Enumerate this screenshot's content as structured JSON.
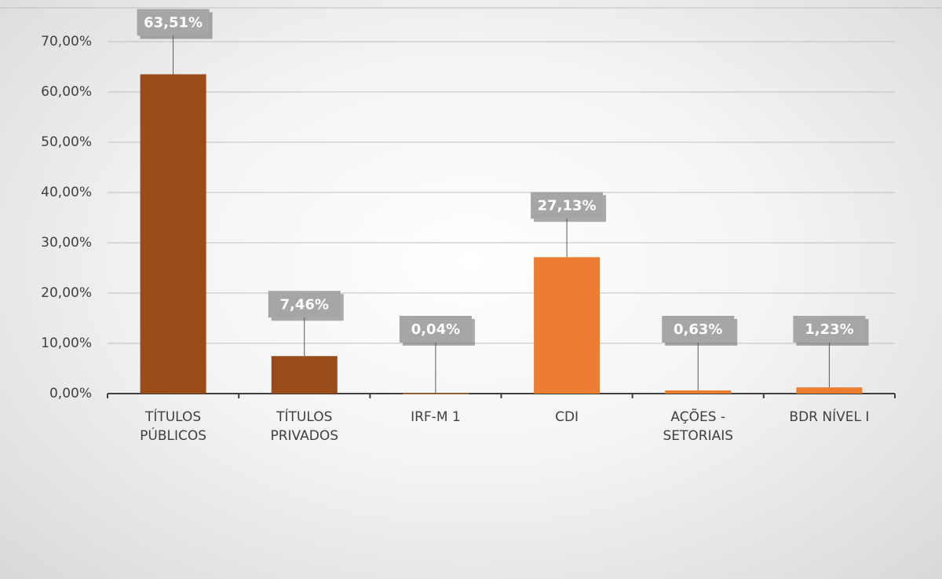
{
  "chart_data": {
    "type": "bar",
    "categories": [
      "TÍTULOS PÚBLICOS",
      "TÍTULOS PRIVADOS",
      "IRF-M 1",
      "CDI",
      "AÇÕES - SETORIAIS",
      "BDR NÍVEL I"
    ],
    "values": [
      63.51,
      7.46,
      0.04,
      27.13,
      0.63,
      1.23
    ],
    "value_labels": [
      "63,51%",
      "7,46%",
      "0,04%",
      "27,13%",
      "0,63%",
      "1,23%"
    ],
    "colors": [
      "#9a4b1a",
      "#9a4b1a",
      "#ed7d31",
      "#ed7d31",
      "#ed7d31",
      "#ed7d31"
    ],
    "ylim": [
      0,
      70
    ],
    "yticks": [
      {
        "value": 0,
        "label": "0,00%"
      },
      {
        "value": 10,
        "label": "10,00%"
      },
      {
        "value": 20,
        "label": "20,00%"
      },
      {
        "value": 30,
        "label": "30,00%"
      },
      {
        "value": 40,
        "label": "40,00%"
      },
      {
        "value": 50,
        "label": "50,00%"
      },
      {
        "value": 60,
        "label": "60,00%"
      },
      {
        "value": 70,
        "label": "70,00%"
      }
    ],
    "grid": true
  }
}
